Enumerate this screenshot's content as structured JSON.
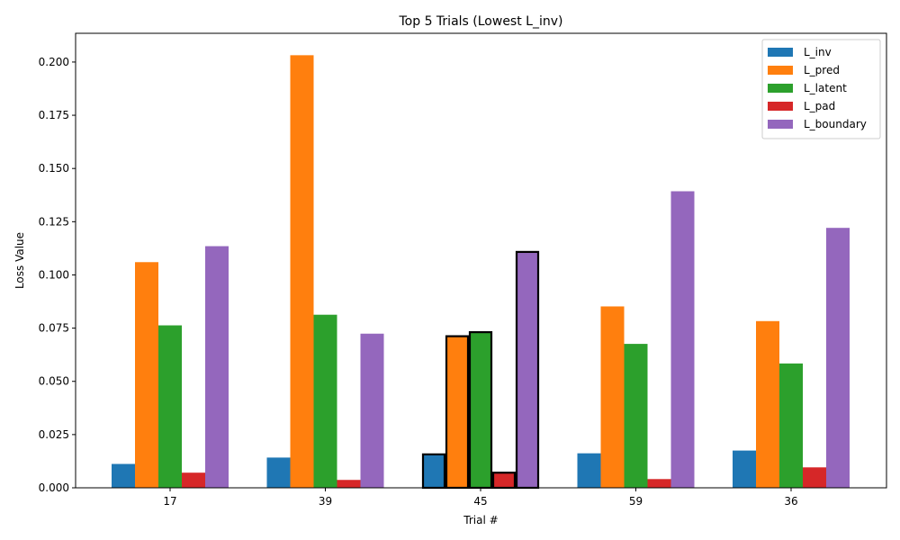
{
  "chart_data": {
    "type": "bar",
    "title": "Top 5 Trials (Lowest L_inv)",
    "xlabel": "Trial #",
    "ylabel": "Loss Value",
    "categories": [
      "17",
      "39",
      "45",
      "59",
      "36"
    ],
    "ylim": [
      0,
      0.2135
    ],
    "yticks": [
      "0.000",
      "0.025",
      "0.050",
      "0.075",
      "0.100",
      "0.125",
      "0.150",
      "0.175",
      "0.200"
    ],
    "ytick_values": [
      0,
      0.025,
      0.05,
      0.075,
      0.1,
      0.125,
      0.15,
      0.175,
      0.2
    ],
    "highlighted_category": "45",
    "legend_position": "top-right",
    "grid": false,
    "series": [
      {
        "name": "L_inv",
        "color": "#1f77b4",
        "values": [
          0.0112,
          0.0142,
          0.0157,
          0.0162,
          0.0175
        ]
      },
      {
        "name": "L_pred",
        "color": "#ff7f0e",
        "values": [
          0.106,
          0.2032,
          0.0712,
          0.0852,
          0.0783
        ]
      },
      {
        "name": "L_latent",
        "color": "#2ca02c",
        "values": [
          0.0763,
          0.0813,
          0.0731,
          0.0676,
          0.0584
        ]
      },
      {
        "name": "L_pad",
        "color": "#d62728",
        "values": [
          0.0071,
          0.0037,
          0.0071,
          0.0041,
          0.0096
        ]
      },
      {
        "name": "L_boundary",
        "color": "#9467bd",
        "values": [
          0.1135,
          0.0724,
          0.1108,
          0.1393,
          0.1221
        ]
      }
    ]
  }
}
